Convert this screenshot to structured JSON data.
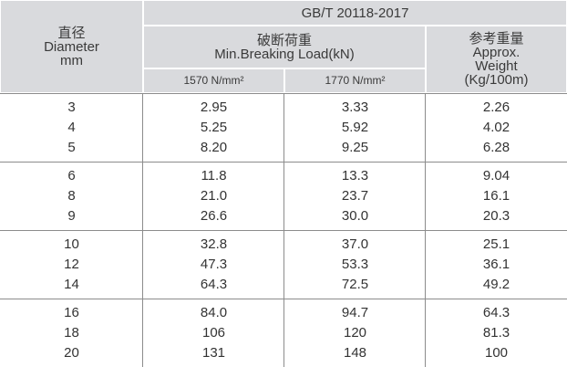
{
  "header": {
    "standard": "GB/T 20118-2017",
    "diameter": [
      "直径",
      "Diameter",
      "mm"
    ],
    "breaking_load": [
      "破断荷重",
      "Min.Breaking Load(kN)"
    ],
    "grade_1": "1570 N/mm²",
    "grade_2": "1770 N/mm²",
    "weight": [
      "参考重量",
      "Approx.",
      "Weight",
      "(Kg/100m)"
    ]
  },
  "table": {
    "groups": [
      {
        "rows": [
          [
            "3",
            "2.95",
            "3.33",
            "2.26"
          ],
          [
            "4",
            "5.25",
            "5.92",
            "4.02"
          ],
          [
            "5",
            "8.20",
            "9.25",
            "6.28"
          ]
        ]
      },
      {
        "rows": [
          [
            "6",
            "11.8",
            "13.3",
            "9.04"
          ],
          [
            "8",
            "21.0",
            "23.7",
            "16.1"
          ],
          [
            "9",
            "26.6",
            "30.0",
            "20.3"
          ]
        ]
      },
      {
        "rows": [
          [
            "10",
            "32.8",
            "37.0",
            "25.1"
          ],
          [
            "12",
            "47.3",
            "53.3",
            "36.1"
          ],
          [
            "14",
            "64.3",
            "72.5",
            "49.2"
          ]
        ]
      },
      {
        "rows": [
          [
            "16",
            "84.0",
            "94.7",
            "64.3"
          ],
          [
            "18",
            "106",
            "120",
            "81.3"
          ],
          [
            "20",
            "131",
            "148",
            "100"
          ]
        ]
      }
    ]
  }
}
